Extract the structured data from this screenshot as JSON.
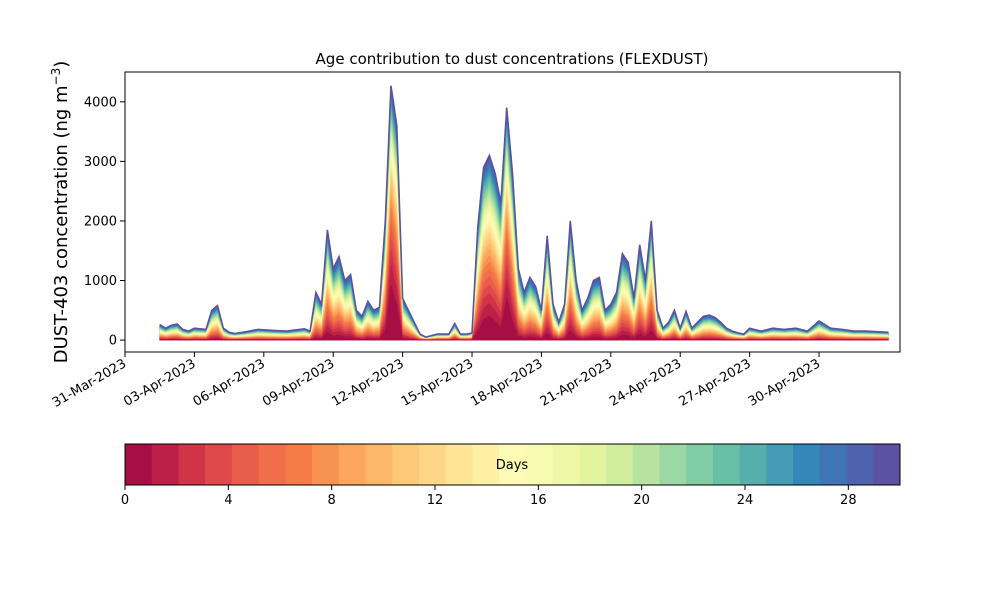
{
  "chart_data": {
    "type": "area",
    "stacked": true,
    "title": "Age contribution to dust concentrations (FLEXDUST)",
    "ylabel": {
      "main": "DUST-403 concentration (ng m",
      "sup": "−3",
      "close": ")"
    },
    "xlabel": "",
    "x_axis": {
      "type": "date",
      "range": [
        "2023-03-31T00:00",
        "2023-05-03T12:00"
      ],
      "ticks": [
        "2023-03-31",
        "2023-04-03",
        "2023-04-06",
        "2023-04-09",
        "2023-04-12",
        "2023-04-15",
        "2023-04-18",
        "2023-04-21",
        "2023-04-24",
        "2023-04-27",
        "2023-04-30"
      ],
      "tick_labels": [
        "31-Mar-2023",
        "03-Apr-2023",
        "06-Apr-2023",
        "09-Apr-2023",
        "12-Apr-2023",
        "15-Apr-2023",
        "18-Apr-2023",
        "21-Apr-2023",
        "24-Apr-2023",
        "27-Apr-2023",
        "30-Apr-2023"
      ]
    },
    "y_axis": {
      "range": [
        -200,
        4500
      ],
      "ticks": [
        0,
        1000,
        2000,
        3000,
        4000
      ],
      "tick_labels": [
        "0",
        "1000",
        "2000",
        "3000",
        "4000"
      ]
    },
    "grid": false,
    "total_profile": {
      "dates": [
        "2023-04-01T12:00",
        "2023-04-01T18:00",
        "2023-04-02T00:00",
        "2023-04-02T06:00",
        "2023-04-02T12:00",
        "2023-04-02T18:00",
        "2023-04-03T00:00",
        "2023-04-03T12:00",
        "2023-04-03T18:00",
        "2023-04-04T00:00",
        "2023-04-04T06:00",
        "2023-04-04T12:00",
        "2023-04-04T18:00",
        "2023-04-05T06:00",
        "2023-04-05T18:00",
        "2023-04-06T12:00",
        "2023-04-07T00:00",
        "2023-04-07T18:00",
        "2023-04-08T00:00",
        "2023-04-08T06:00",
        "2023-04-08T12:00",
        "2023-04-08T18:00",
        "2023-04-09T00:00",
        "2023-04-09T06:00",
        "2023-04-09T12:00",
        "2023-04-09T18:00",
        "2023-04-10T00:00",
        "2023-04-10T06:00",
        "2023-04-10T12:00",
        "2023-04-10T18:00",
        "2023-04-11T00:00",
        "2023-04-11T06:00",
        "2023-04-11T12:00",
        "2023-04-11T18:00",
        "2023-04-12T00:00",
        "2023-04-12T06:00",
        "2023-04-12T12:00",
        "2023-04-12T18:00",
        "2023-04-13T00:00",
        "2023-04-13T12:00",
        "2023-04-14T00:00",
        "2023-04-14T06:00",
        "2023-04-14T12:00",
        "2023-04-14T18:00",
        "2023-04-15T00:00",
        "2023-04-15T06:00",
        "2023-04-15T12:00",
        "2023-04-15T18:00",
        "2023-04-16T00:00",
        "2023-04-16T06:00",
        "2023-04-16T12:00",
        "2023-04-16T18:00",
        "2023-04-17T00:00",
        "2023-04-17T06:00",
        "2023-04-17T12:00",
        "2023-04-17T18:00",
        "2023-04-18T00:00",
        "2023-04-18T06:00",
        "2023-04-18T12:00",
        "2023-04-18T18:00",
        "2023-04-19T00:00",
        "2023-04-19T06:00",
        "2023-04-19T12:00",
        "2023-04-19T18:00",
        "2023-04-20T00:00",
        "2023-04-20T06:00",
        "2023-04-20T12:00",
        "2023-04-20T18:00",
        "2023-04-21T00:00",
        "2023-04-21T06:00",
        "2023-04-21T12:00",
        "2023-04-21T18:00",
        "2023-04-22T00:00",
        "2023-04-22T06:00",
        "2023-04-22T12:00",
        "2023-04-22T18:00",
        "2023-04-23T00:00",
        "2023-04-23T06:00",
        "2023-04-23T12:00",
        "2023-04-23T18:00",
        "2023-04-24T00:00",
        "2023-04-24T06:00",
        "2023-04-24T12:00",
        "2023-04-24T18:00",
        "2023-04-25T00:00",
        "2023-04-25T06:00",
        "2023-04-25T12:00",
        "2023-04-25T18:00",
        "2023-04-26T00:00",
        "2023-04-26T06:00",
        "2023-04-26T12:00",
        "2023-04-26T18:00",
        "2023-04-27T00:00",
        "2023-04-27T12:00",
        "2023-04-28T00:00",
        "2023-04-28T12:00",
        "2023-04-29T00:00",
        "2023-04-29T12:00",
        "2023-04-30T00:00",
        "2023-04-30T12:00",
        "2023-05-01T00:00",
        "2023-05-01T12:00",
        "2023-05-02T00:00",
        "2023-05-02T12:00",
        "2023-05-03T00:00"
      ],
      "values": [
        260,
        200,
        250,
        270,
        180,
        150,
        200,
        180,
        500,
        580,
        200,
        130,
        110,
        140,
        180,
        160,
        150,
        190,
        150,
        800,
        600,
        1850,
        1200,
        1400,
        1000,
        1100,
        500,
        400,
        650,
        500,
        550,
        2000,
        4270,
        3600,
        700,
        500,
        300,
        100,
        50,
        100,
        100,
        280,
        100,
        100,
        120,
        1900,
        2900,
        3100,
        2800,
        2300,
        3900,
        2800,
        1200,
        800,
        1050,
        900,
        500,
        1750,
        600,
        300,
        600,
        2000,
        1000,
        500,
        700,
        1000,
        1050,
        500,
        600,
        800,
        1450,
        1300,
        700,
        1600,
        1000,
        2000,
        500,
        200,
        300,
        500,
        200,
        480,
        200,
        300,
        400,
        420,
        380,
        300,
        200,
        150,
        120,
        100,
        200,
        150,
        200,
        180,
        200,
        150,
        320,
        200,
        180,
        150,
        150,
        140,
        130
      ]
    },
    "colorbar": {
      "label": "Days",
      "range": [
        0,
        30
      ],
      "ticks": [
        0,
        4,
        8,
        12,
        16,
        20,
        24,
        28
      ],
      "tick_labels": [
        "0",
        "4",
        "8",
        "12",
        "16",
        "20",
        "24",
        "28"
      ],
      "colors": [
        "#a50f46",
        "#bc2046",
        "#d13449",
        "#de4a4c",
        "#e65d4a",
        "#f06e4a",
        "#f57b47",
        "#f89253",
        "#fca660",
        "#fdb768",
        "#fdc877",
        "#fdd787",
        "#fee596",
        "#fff0a6",
        "#fefbb6",
        "#f8fbb1",
        "#eef8a6",
        "#e3f49f",
        "#cfed9c",
        "#b7e3a0",
        "#9cd8a4",
        "#80cca5",
        "#68c0a4",
        "#56afac",
        "#449bb4",
        "#3388b9",
        "#3f75b5",
        "#4d63ad",
        "#5c52a2"
      ]
    }
  }
}
